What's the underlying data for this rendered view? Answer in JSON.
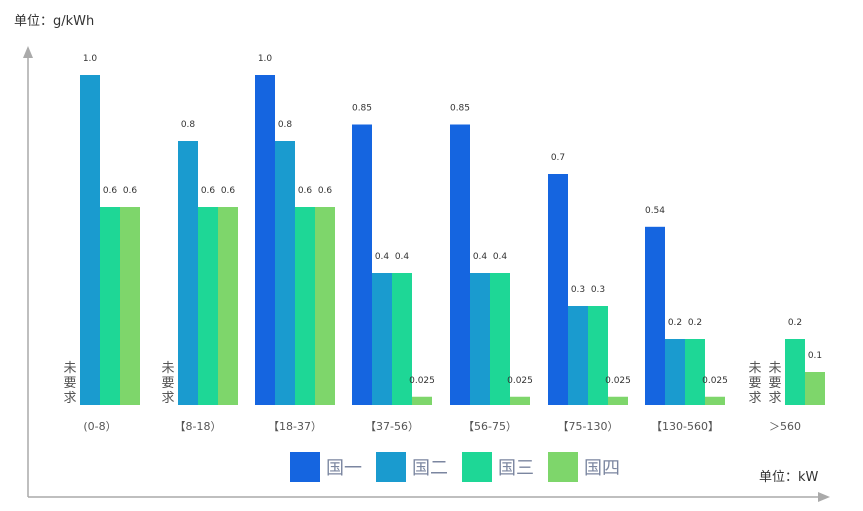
{
  "chart_data": {
    "type": "bar",
    "y_unit_label": "单位：g/kWh",
    "x_unit_label": "单位：kW",
    "categories": [
      "(0-8）",
      "【8-18）",
      "【18-37）",
      "【37-56）",
      "【56-75）",
      "【75-130）",
      "【130-560】",
      "＞560"
    ],
    "series": [
      {
        "name": "国一",
        "color": "#1565e0",
        "values": [
          null,
          null,
          1.0,
          0.85,
          0.85,
          0.7,
          0.54,
          null
        ],
        "labels": [
          "",
          "",
          "1.0",
          "0.85",
          "0.85",
          "0.7",
          "0.54",
          ""
        ]
      },
      {
        "name": "国二",
        "color": "#1a9bcf",
        "values": [
          1.0,
          0.8,
          0.8,
          0.4,
          0.4,
          0.3,
          0.2,
          null
        ],
        "labels": [
          "1.0",
          "0.8",
          "0.8",
          "0.4",
          "0.4",
          "0.3",
          "0.2",
          ""
        ]
      },
      {
        "name": "国三",
        "color": "#1ed796",
        "values": [
          0.6,
          0.6,
          0.6,
          0.4,
          0.4,
          0.3,
          0.2,
          0.2
        ],
        "labels": [
          "0.6",
          "0.6",
          "0.6",
          "0.4",
          "0.4",
          "0.3",
          "0.2",
          "0.2"
        ]
      },
      {
        "name": "国四",
        "color": "#7ed66b",
        "values": [
          0.6,
          0.6,
          0.6,
          0.025,
          0.025,
          0.025,
          0.025,
          0.1
        ],
        "labels": [
          "0.6",
          "0.6",
          "0.6",
          "0.025",
          "0.025",
          "0.025",
          "0.025",
          "0.1"
        ]
      }
    ],
    "no_requirement_text": "未要求",
    "no_requirement": [
      {
        "category": 0,
        "series": [
          0
        ]
      },
      {
        "category": 1,
        "series": [
          0
        ]
      },
      {
        "category": 7,
        "series": [
          0,
          1
        ]
      }
    ],
    "ylim": [
      0,
      1.0
    ],
    "grid": false,
    "legend_position": "bottom"
  }
}
